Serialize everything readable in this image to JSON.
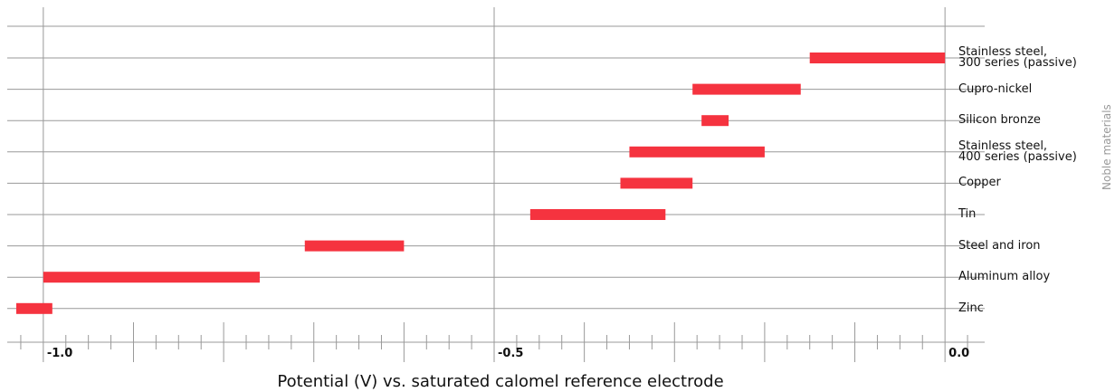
{
  "chart_data": {
    "type": "range_bar",
    "x_label": "Potential (V) vs. saturated calomel reference electrode",
    "side_label": "Noble materials",
    "categories": [
      "Stainless steel,\n300 series (passive)",
      "Cupro-nickel",
      "Silicon bronze",
      "Stainless steel,\n400 series (passive)",
      "Copper",
      "Tin",
      "Steel and iron",
      "Aluminum alloy",
      "Zinc"
    ],
    "starts": [
      -0.15,
      -0.28,
      -0.27,
      -0.35,
      -0.36,
      -0.46,
      -0.71,
      -1.0,
      -1.03
    ],
    "ends": [
      0.0,
      -0.16,
      -0.24,
      -0.2,
      -0.28,
      -0.31,
      -0.6,
      -0.76,
      -0.99
    ],
    "color": "#f5333f",
    "xlim": [
      -1.04,
      0.044
    ],
    "xticks": [
      {
        "value": -1.0,
        "label": "-1.0"
      },
      {
        "value": -0.5,
        "label": "-0.5"
      },
      {
        "value": 0.0,
        "label": "0.0"
      }
    ],
    "xticks_medium": [
      -0.9,
      -0.8,
      -0.7,
      -0.6,
      -0.4,
      -0.3,
      -0.2,
      -0.1
    ],
    "xticks_minor": [
      -1.025,
      -0.975,
      -0.95,
      -0.925,
      -0.875,
      -0.85,
      -0.825,
      -0.775,
      -0.75,
      -0.725,
      -0.675,
      -0.65,
      -0.625,
      -0.575,
      -0.55,
      -0.525,
      -0.475,
      -0.45,
      -0.425,
      -0.375,
      -0.35,
      -0.325,
      -0.275,
      -0.25,
      -0.225,
      -0.175,
      -0.15,
      -0.125,
      -0.075,
      -0.05,
      -0.025,
      0.025
    ],
    "grid": true
  }
}
